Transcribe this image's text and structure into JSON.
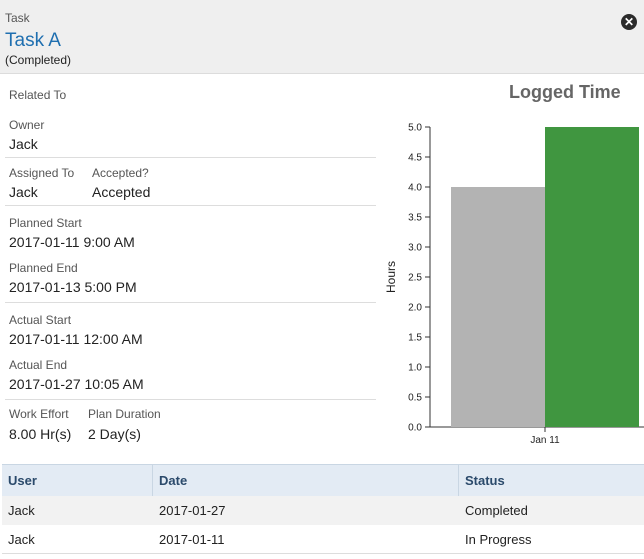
{
  "header": {
    "type_label": "Task",
    "title": "Task A",
    "status": "(Completed)",
    "close_glyph": "✕"
  },
  "details": {
    "related_to_label": "Related To",
    "owner_label": "Owner",
    "owner": "Jack",
    "assigned_to_label": "Assigned To",
    "assigned_to": "Jack",
    "accepted_label": "Accepted?",
    "accepted": "Accepted",
    "planned_start_label": "Planned Start",
    "planned_start": "2017-01-11 9:00 AM",
    "planned_end_label": "Planned End",
    "planned_end": "2017-01-13 5:00 PM",
    "actual_start_label": "Actual Start",
    "actual_start": "2017-01-11 12:00 AM",
    "actual_end_label": "Actual End",
    "actual_end": "2017-01-27 10:05 AM",
    "work_effort_label": "Work Effort",
    "work_effort": "8.00 Hr(s)",
    "plan_duration_label": "Plan Duration",
    "plan_duration": "2 Day(s)"
  },
  "chart_title": "Logged Time",
  "chart_data": {
    "type": "bar",
    "title": "Logged Time",
    "xlabel": "",
    "ylabel": "Hours",
    "categories": [
      "Jan 11"
    ],
    "series": [
      {
        "values": [
          4.0
        ],
        "color": "#b3b3b3"
      },
      {
        "values": [
          5.0
        ],
        "color": "#409640"
      }
    ],
    "ylim": [
      0,
      5
    ],
    "yticks": [
      "0.0",
      "0.5",
      "1.0",
      "1.5",
      "2.0",
      "2.5",
      "3.0",
      "3.5",
      "4.0",
      "4.5",
      "5.0"
    ],
    "grid": false,
    "legend": "none"
  },
  "table": {
    "columns": [
      "User",
      "Date",
      "Status"
    ],
    "rows": [
      [
        "Jack",
        "2017-01-27",
        "Completed"
      ],
      [
        "Jack",
        "2017-01-11",
        "In Progress"
      ]
    ]
  },
  "colors": {
    "accent": "#1f6fb0",
    "header_bg": "#efefef",
    "grid_header_bg": "#e3ebf4",
    "bar_gray": "#b3b3b3",
    "bar_green": "#409640"
  }
}
